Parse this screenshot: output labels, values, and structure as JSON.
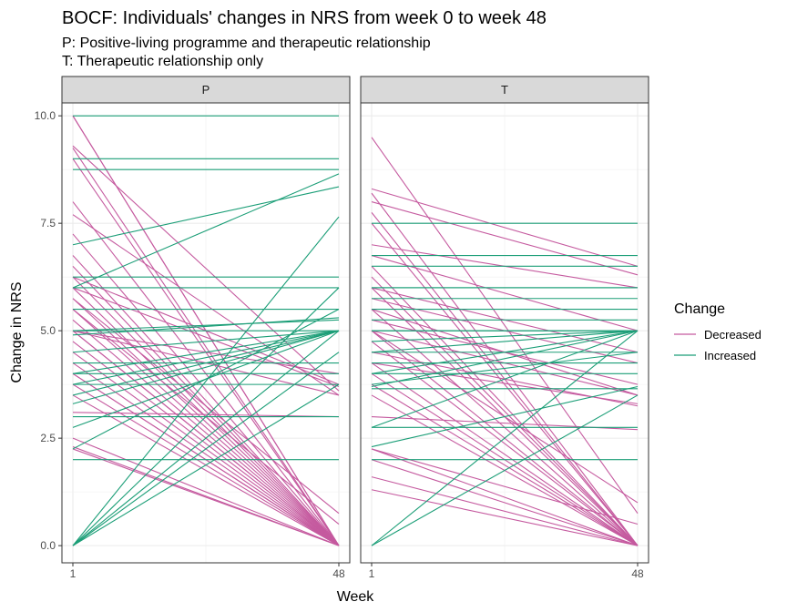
{
  "chart_data": {
    "type": "line",
    "title": "BOCF: Individuals' changes in NRS from week 0 to week 48",
    "subtitle_lines": [
      "P: Positive-living programme and therapeutic relationship",
      "T: Therapeutic relationship only"
    ],
    "xlabel": "Week",
    "ylabel": "Change in NRS",
    "x_ticks": [
      "1",
      "48"
    ],
    "y_ticks": [
      "0.0",
      "2.5",
      "5.0",
      "7.5",
      "10.0"
    ],
    "xlim": [
      1,
      48
    ],
    "ylim": [
      -0.4,
      10.3
    ],
    "grid": true,
    "legend": {
      "title": "Change",
      "placement": "right",
      "entries": [
        {
          "label": "Decreased",
          "color": "#c55a9f"
        },
        {
          "label": "Increased",
          "color": "#1b9e77"
        }
      ]
    },
    "panels": [
      {
        "label": "P",
        "segments": [
          [
            10,
            0,
            "Decreased"
          ],
          [
            10,
            0,
            "Decreased"
          ],
          [
            9.3,
            3.6,
            "Decreased"
          ],
          [
            9.25,
            0,
            "Decreased"
          ],
          [
            9,
            0,
            "Decreased"
          ],
          [
            8,
            0,
            "Decreased"
          ],
          [
            7.7,
            3.5,
            "Decreased"
          ],
          [
            7.25,
            0,
            "Decreased"
          ],
          [
            6.75,
            0,
            "Decreased"
          ],
          [
            6.5,
            0,
            "Decreased"
          ],
          [
            6.25,
            3.75,
            "Decreased"
          ],
          [
            6.25,
            0,
            "Decreased"
          ],
          [
            6,
            0,
            "Decreased"
          ],
          [
            6,
            3.7,
            "Decreased"
          ],
          [
            5.75,
            0,
            "Decreased"
          ],
          [
            5.75,
            0.75,
            "Decreased"
          ],
          [
            5.5,
            0,
            "Decreased"
          ],
          [
            5.5,
            0.5,
            "Decreased"
          ],
          [
            5.25,
            0,
            "Decreased"
          ],
          [
            5,
            0,
            "Decreased"
          ],
          [
            5,
            4,
            "Decreased"
          ],
          [
            5,
            3.5,
            "Decreased"
          ],
          [
            5,
            0,
            "Decreased"
          ],
          [
            4.75,
            0,
            "Decreased"
          ],
          [
            4.5,
            0,
            "Decreased"
          ],
          [
            4.25,
            0,
            "Decreased"
          ],
          [
            4,
            0,
            "Decreased"
          ],
          [
            4,
            0,
            "Decreased"
          ],
          [
            3.75,
            0,
            "Decreased"
          ],
          [
            3.5,
            0,
            "Decreased"
          ],
          [
            3.1,
            3.0,
            "Decreased"
          ],
          [
            2.5,
            0,
            "Decreased"
          ],
          [
            2.3,
            0,
            "Decreased"
          ],
          [
            2.25,
            0,
            "Decreased"
          ],
          [
            10,
            10,
            "Increased"
          ],
          [
            9,
            9,
            "Increased"
          ],
          [
            8.75,
            8.75,
            "Increased"
          ],
          [
            7,
            8.35,
            "Increased"
          ],
          [
            6.25,
            6.25,
            "Increased"
          ],
          [
            6,
            6,
            "Increased"
          ],
          [
            6,
            8.65,
            "Increased"
          ],
          [
            5.5,
            5.5,
            "Increased"
          ],
          [
            5,
            5,
            "Increased"
          ],
          [
            5,
            5.25,
            "Increased"
          ],
          [
            4.9,
            5.3,
            "Increased"
          ],
          [
            4.5,
            5,
            "Increased"
          ],
          [
            4.25,
            4.25,
            "Increased"
          ],
          [
            4,
            4,
            "Increased"
          ],
          [
            4,
            5,
            "Increased"
          ],
          [
            3.75,
            3.75,
            "Increased"
          ],
          [
            3.75,
            5,
            "Increased"
          ],
          [
            3.5,
            5,
            "Increased"
          ],
          [
            3.3,
            5,
            "Increased"
          ],
          [
            3,
            3,
            "Increased"
          ],
          [
            2.75,
            5,
            "Increased"
          ],
          [
            2.25,
            5.5,
            "Increased"
          ],
          [
            2,
            2,
            "Increased"
          ],
          [
            0,
            7.65,
            "Increased"
          ],
          [
            0,
            6,
            "Increased"
          ],
          [
            0,
            5,
            "Increased"
          ],
          [
            0,
            4.5,
            "Increased"
          ],
          [
            0,
            3.75,
            "Increased"
          ]
        ]
      },
      {
        "label": "T",
        "segments": [
          [
            9.5,
            0.75,
            "Decreased"
          ],
          [
            8.3,
            6.5,
            "Decreased"
          ],
          [
            8.2,
            0,
            "Decreased"
          ],
          [
            8,
            6.3,
            "Decreased"
          ],
          [
            7.75,
            0,
            "Decreased"
          ],
          [
            7.5,
            0,
            "Decreased"
          ],
          [
            7,
            6,
            "Decreased"
          ],
          [
            6.75,
            5,
            "Decreased"
          ],
          [
            6.5,
            0,
            "Decreased"
          ],
          [
            6.25,
            0,
            "Decreased"
          ],
          [
            6,
            4.5,
            "Decreased"
          ],
          [
            6,
            0,
            "Decreased"
          ],
          [
            5.75,
            4.25,
            "Decreased"
          ],
          [
            5.5,
            0,
            "Decreased"
          ],
          [
            5.25,
            3.75,
            "Decreased"
          ],
          [
            5,
            0,
            "Decreased"
          ],
          [
            5,
            3.5,
            "Decreased"
          ],
          [
            5,
            1,
            "Decreased"
          ],
          [
            4.75,
            0,
            "Decreased"
          ],
          [
            4.5,
            3.25,
            "Decreased"
          ],
          [
            4.25,
            0,
            "Decreased"
          ],
          [
            4.25,
            3.3,
            "Decreased"
          ],
          [
            4,
            0,
            "Decreased"
          ],
          [
            3.75,
            0,
            "Decreased"
          ],
          [
            3.5,
            0,
            "Decreased"
          ],
          [
            3,
            2.7,
            "Decreased"
          ],
          [
            2.25,
            0.5,
            "Decreased"
          ],
          [
            2.25,
            0,
            "Decreased"
          ],
          [
            2,
            0,
            "Decreased"
          ],
          [
            1.6,
            0,
            "Decreased"
          ],
          [
            1.3,
            0,
            "Decreased"
          ],
          [
            5.5,
            3.5,
            "Decreased"
          ],
          [
            7.5,
            7.5,
            "Increased"
          ],
          [
            6.75,
            6.75,
            "Increased"
          ],
          [
            6.5,
            6.5,
            "Increased"
          ],
          [
            6,
            6,
            "Increased"
          ],
          [
            6,
            6,
            "Increased"
          ],
          [
            5.75,
            5.75,
            "Increased"
          ],
          [
            5.5,
            5.5,
            "Increased"
          ],
          [
            5.25,
            5.25,
            "Increased"
          ],
          [
            5,
            5,
            "Increased"
          ],
          [
            5,
            5,
            "Increased"
          ],
          [
            4.75,
            5,
            "Increased"
          ],
          [
            4.5,
            5,
            "Increased"
          ],
          [
            4.5,
            4.5,
            "Increased"
          ],
          [
            4.25,
            4.25,
            "Increased"
          ],
          [
            4,
            5,
            "Increased"
          ],
          [
            4,
            4,
            "Increased"
          ],
          [
            3.75,
            4.5,
            "Increased"
          ],
          [
            3.7,
            5,
            "Increased"
          ],
          [
            3.65,
            3.65,
            "Increased"
          ],
          [
            2.75,
            2.75,
            "Increased"
          ],
          [
            2.75,
            5,
            "Increased"
          ],
          [
            2.3,
            3.7,
            "Increased"
          ],
          [
            2,
            2,
            "Increased"
          ],
          [
            0,
            5,
            "Increased"
          ],
          [
            0,
            3.5,
            "Increased"
          ]
        ]
      }
    ]
  }
}
